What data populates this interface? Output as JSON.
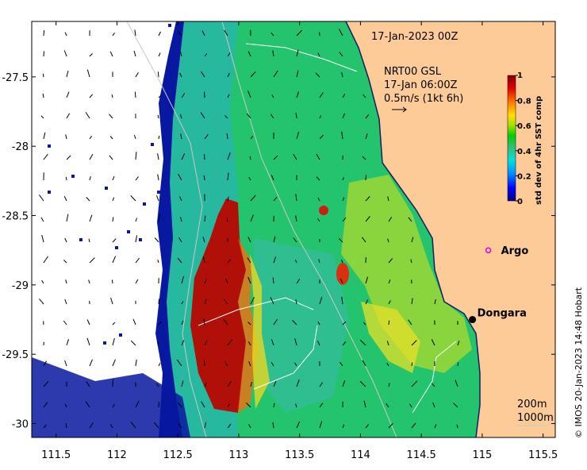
{
  "map": {
    "date_label": "17-Jan-2023 00Z",
    "product_line1": "NRT00 GSL",
    "product_line2": "17-Jan 06:00Z",
    "scale_label": "0.5m/s (1kt 6h)",
    "places": [
      {
        "name": "Argo",
        "lon": 115.05,
        "lat": -28.75
      },
      {
        "name": "Dongara",
        "lon": 114.92,
        "lat": -29.25
      }
    ],
    "isobaths": [
      "200m",
      "1000m"
    ],
    "credit": "© IMOS 20-Jan-2023 14:48 Hobart"
  },
  "axes": {
    "x_ticks": [
      "111.5",
      "112",
      "112.5",
      "113",
      "113.5",
      "114",
      "114.5",
      "115",
      "115.5"
    ],
    "y_ticks": [
      "-27.5",
      "-28",
      "-28.5",
      "-29",
      "-29.5",
      "-30"
    ],
    "x_range": [
      111.3,
      115.6
    ],
    "y_range": [
      -30.1,
      -27.1
    ]
  },
  "colorbar": {
    "label": "std dev of 4hr SST comp",
    "ticks": [
      "1",
      "0.8",
      "0.6",
      "0.4",
      "0.2",
      "0"
    ],
    "colors": [
      "#000080",
      "#0000ff",
      "#0090ff",
      "#00e0e0",
      "#30c080",
      "#00d000",
      "#a0e000",
      "#ffe000",
      "#ff8000",
      "#e00000",
      "#800000"
    ]
  },
  "colors": {
    "land": "#fccb98",
    "background": "#ffffff"
  }
}
